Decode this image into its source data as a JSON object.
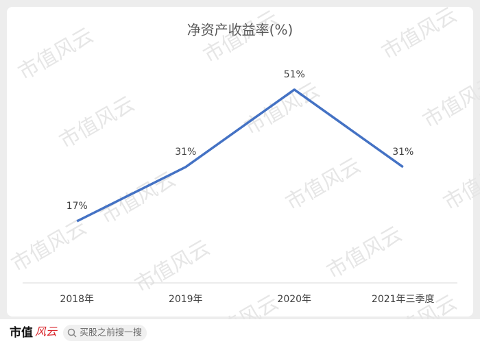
{
  "chart_data": {
    "type": "line",
    "title": "净资产收益率(%)",
    "categories": [
      "2018年",
      "2019年",
      "2020年",
      "2021年三季度"
    ],
    "values": [
      17,
      31,
      51,
      31
    ],
    "value_labels": [
      "17%",
      "31%",
      "51%",
      "31%"
    ],
    "color": "#4472c4"
  },
  "watermark": "市值风云",
  "footer": {
    "logo_left": "市值",
    "logo_right": "风云",
    "search": "买股之前搜一搜"
  }
}
